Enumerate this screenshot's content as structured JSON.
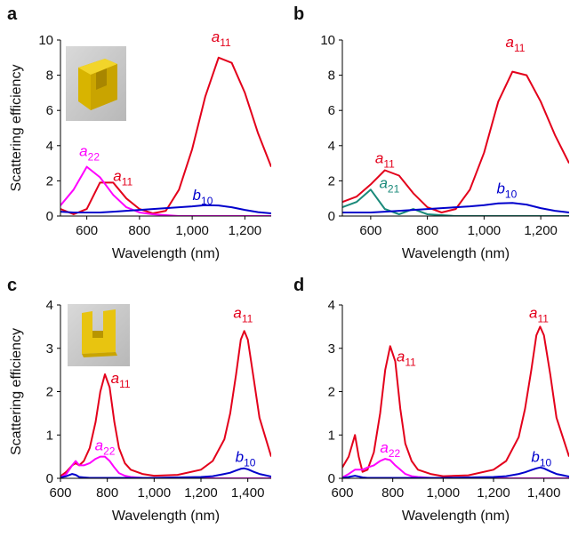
{
  "chart_data": [
    {
      "type": "line",
      "panel": "a",
      "xlabel": "Wavelength (nm)",
      "ylabel": "Scattering efficiency",
      "x": [
        500,
        550,
        600,
        650,
        700,
        750,
        800,
        850,
        900,
        950,
        1000,
        1050,
        1100,
        1150,
        1200,
        1250,
        1300
      ],
      "xlim": [
        500,
        1300
      ],
      "xticks": [
        600,
        800,
        {
          "value": 1000,
          "label": "1,000"
        },
        {
          "value": 1200,
          "label": "1,200"
        }
      ],
      "ylim": [
        0,
        10
      ],
      "yticks": [
        0,
        2,
        4,
        6,
        8,
        10
      ],
      "series": [
        {
          "name": "a",
          "subscript": "11",
          "color": "#e3001b",
          "values": [
            0.4,
            0.1,
            0.4,
            1.9,
            1.9,
            1.0,
            0.4,
            0.15,
            0.3,
            1.5,
            3.8,
            6.8,
            9.0,
            8.7,
            7.0,
            4.7,
            2.8
          ]
        },
        {
          "name": "a",
          "subscript": "22",
          "color": "#ff00ff",
          "values": [
            0.6,
            1.5,
            2.8,
            2.2,
            1.2,
            0.5,
            0.2,
            0.1,
            0.05,
            0,
            0,
            0,
            0,
            0,
            0,
            0,
            0
          ]
        },
        {
          "name": "b",
          "subscript": "10",
          "color": "#0000cc",
          "values": [
            0.25,
            0.2,
            0.2,
            0.2,
            0.25,
            0.3,
            0.35,
            0.4,
            0.45,
            0.5,
            0.55,
            0.62,
            0.6,
            0.5,
            0.35,
            0.22,
            0.15
          ]
        }
      ]
    },
    {
      "type": "line",
      "panel": "b",
      "xlabel": "Wavelength (nm)",
      "x": [
        500,
        550,
        600,
        650,
        700,
        750,
        800,
        850,
        900,
        950,
        1000,
        1050,
        1100,
        1150,
        1200,
        1250,
        1300
      ],
      "xlim": [
        500,
        1300
      ],
      "xticks": [
        600,
        800,
        {
          "value": 1000,
          "label": "1,000"
        },
        {
          "value": 1200,
          "label": "1,200"
        }
      ],
      "ylim": [
        0,
        10
      ],
      "yticks": [
        0,
        2,
        4,
        6,
        8,
        10
      ],
      "series": [
        {
          "name": "a",
          "subscript": "11",
          "color": "#e3001b",
          "values": [
            0.8,
            1.1,
            1.8,
            2.6,
            2.3,
            1.3,
            0.5,
            0.2,
            0.4,
            1.5,
            3.6,
            6.5,
            8.2,
            8.0,
            6.5,
            4.6,
            3.0
          ]
        },
        {
          "name": "a",
          "subscript": "21",
          "color": "#1a8a7a",
          "values": [
            0.5,
            0.8,
            1.5,
            0.4,
            0.1,
            0.4,
            0.1,
            0.05,
            0,
            0,
            0,
            0,
            0,
            0,
            0,
            0,
            0
          ]
        },
        {
          "name": "b",
          "subscript": "10",
          "color": "#0000cc",
          "values": [
            0.2,
            0.2,
            0.2,
            0.25,
            0.3,
            0.35,
            0.4,
            0.45,
            0.5,
            0.55,
            0.62,
            0.72,
            0.75,
            0.65,
            0.45,
            0.3,
            0.2
          ]
        }
      ]
    },
    {
      "type": "line",
      "panel": "c",
      "xlabel": "Wavelength (nm)",
      "ylabel": "Scattering efficiency",
      "x": [
        600,
        625,
        650,
        665,
        680,
        700,
        725,
        750,
        770,
        790,
        810,
        830,
        850,
        875,
        900,
        950,
        1000,
        1100,
        1200,
        1250,
        1300,
        1325,
        1350,
        1370,
        1385,
        1400,
        1425,
        1450,
        1500
      ],
      "xlim": [
        600,
        1500
      ],
      "xticks": [
        600,
        800,
        {
          "value": 1000,
          "label": "1,000"
        },
        {
          "value": 1200,
          "label": "1,200"
        },
        {
          "value": 1400,
          "label": "1,400"
        }
      ],
      "ylim": [
        0,
        4
      ],
      "yticks": [
        0,
        1,
        2,
        3,
        4
      ],
      "series": [
        {
          "name": "a",
          "subscript": "11",
          "color": "#e3001b",
          "values": [
            0.05,
            0.15,
            0.3,
            0.35,
            0.3,
            0.4,
            0.7,
            1.3,
            2.0,
            2.4,
            2.1,
            1.3,
            0.7,
            0.35,
            0.2,
            0.1,
            0.06,
            0.08,
            0.2,
            0.4,
            0.9,
            1.5,
            2.4,
            3.2,
            3.4,
            3.2,
            2.3,
            1.4,
            0.5
          ]
        },
        {
          "name": "a",
          "subscript": "22",
          "color": "#ff00ff",
          "values": [
            0.02,
            0.1,
            0.3,
            0.4,
            0.3,
            0.3,
            0.35,
            0.45,
            0.5,
            0.5,
            0.4,
            0.25,
            0.12,
            0.06,
            0.03,
            0.01,
            0,
            0,
            0,
            0,
            0,
            0,
            0,
            0,
            0,
            0,
            0,
            0,
            0
          ]
        },
        {
          "name": "b",
          "subscript": "10",
          "color": "#0000cc",
          "values": [
            0.02,
            0.05,
            0.1,
            0.08,
            0.03,
            0.02,
            0.01,
            0.01,
            0.01,
            0.01,
            0.01,
            0.01,
            0.01,
            0.01,
            0.01,
            0.01,
            0.01,
            0.02,
            0.03,
            0.05,
            0.1,
            0.13,
            0.18,
            0.22,
            0.23,
            0.21,
            0.15,
            0.1,
            0.04
          ]
        }
      ]
    },
    {
      "type": "line",
      "panel": "d",
      "xlabel": "Wavelength (nm)",
      "x": [
        600,
        625,
        650,
        665,
        680,
        700,
        725,
        750,
        770,
        790,
        810,
        830,
        850,
        875,
        900,
        950,
        1000,
        1100,
        1200,
        1250,
        1300,
        1325,
        1350,
        1370,
        1385,
        1400,
        1425,
        1450,
        1500
      ],
      "xlim": [
        600,
        1500
      ],
      "xticks": [
        600,
        800,
        {
          "value": 1000,
          "label": "1,000"
        },
        {
          "value": 1200,
          "label": "1,200"
        },
        {
          "value": 1400,
          "label": "1,400"
        }
      ],
      "ylim": [
        0,
        4
      ],
      "yticks": [
        0,
        1,
        2,
        3,
        4
      ],
      "series": [
        {
          "name": "a",
          "subscript": "11",
          "color": "#e3001b",
          "values": [
            0.25,
            0.5,
            1.0,
            0.5,
            0.15,
            0.2,
            0.6,
            1.5,
            2.5,
            3.05,
            2.7,
            1.6,
            0.8,
            0.4,
            0.2,
            0.1,
            0.05,
            0.07,
            0.2,
            0.4,
            0.95,
            1.6,
            2.5,
            3.3,
            3.5,
            3.3,
            2.4,
            1.4,
            0.5
          ]
        },
        {
          "name": "a",
          "subscript": "22",
          "color": "#ff00ff",
          "values": [
            0.02,
            0.1,
            0.2,
            0.2,
            0.2,
            0.25,
            0.3,
            0.4,
            0.45,
            0.42,
            0.3,
            0.2,
            0.1,
            0.05,
            0.03,
            0.01,
            0,
            0,
            0,
            0,
            0,
            0,
            0,
            0,
            0,
            0,
            0,
            0,
            0
          ]
        },
        {
          "name": "b",
          "subscript": "10",
          "color": "#0000cc",
          "values": [
            0.01,
            0.03,
            0.06,
            0.04,
            0.02,
            0.01,
            0.01,
            0.01,
            0.01,
            0.01,
            0.01,
            0.01,
            0.01,
            0.01,
            0.01,
            0.01,
            0.01,
            0.02,
            0.03,
            0.05,
            0.1,
            0.14,
            0.19,
            0.23,
            0.25,
            0.23,
            0.16,
            0.1,
            0.04
          ]
        }
      ]
    }
  ]
}
